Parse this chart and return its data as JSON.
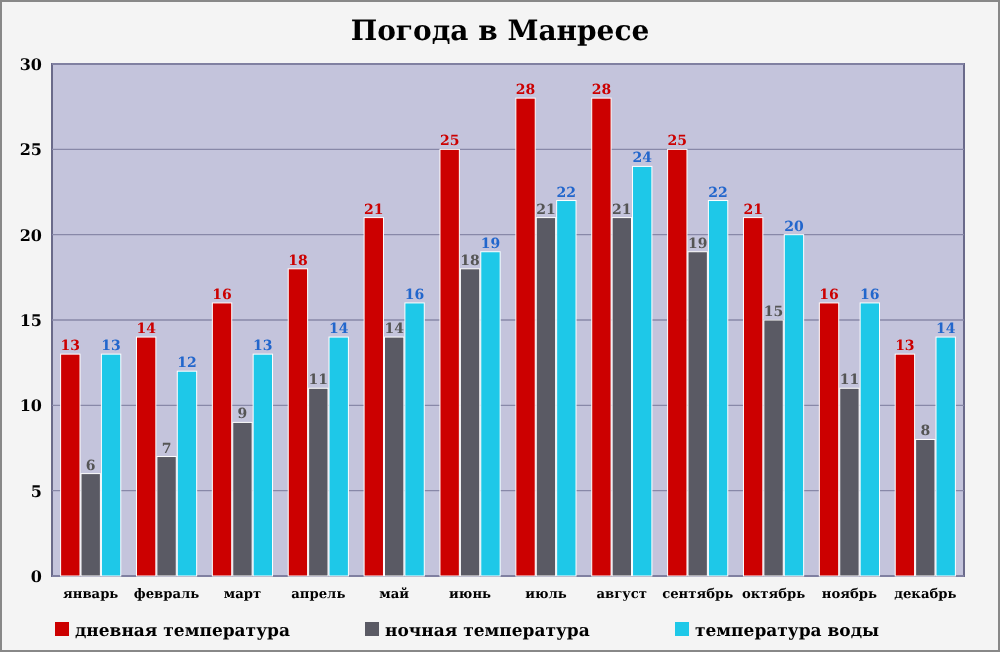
{
  "chart_data": {
    "type": "bar",
    "title": "Погода в Манресе",
    "categories": [
      "январь",
      "февраль",
      "март",
      "апрель",
      "май",
      "июнь",
      "июль",
      "август",
      "сентябрь",
      "октябрь",
      "ноябрь",
      "декабрь"
    ],
    "series": [
      {
        "name": "дневная температура",
        "color": "#cc0000",
        "values": [
          13,
          14,
          16,
          18,
          21,
          25,
          28,
          28,
          25,
          21,
          16,
          13
        ]
      },
      {
        "name": "ночная температура",
        "color": "#5a5a64",
        "values": [
          6,
          7,
          9,
          11,
          14,
          18,
          21,
          21,
          19,
          15,
          11,
          8
        ]
      },
      {
        "name": "температура воды",
        "color": "#1ec8e8",
        "values": [
          13,
          12,
          13,
          14,
          16,
          19,
          22,
          24,
          22,
          20,
          16,
          14
        ]
      }
    ],
    "ylim": [
      0,
      30
    ],
    "yticks": [
      0,
      5,
      10,
      15,
      20,
      25,
      30
    ],
    "grid": "y",
    "legend": "bottom",
    "data_labels": true
  }
}
